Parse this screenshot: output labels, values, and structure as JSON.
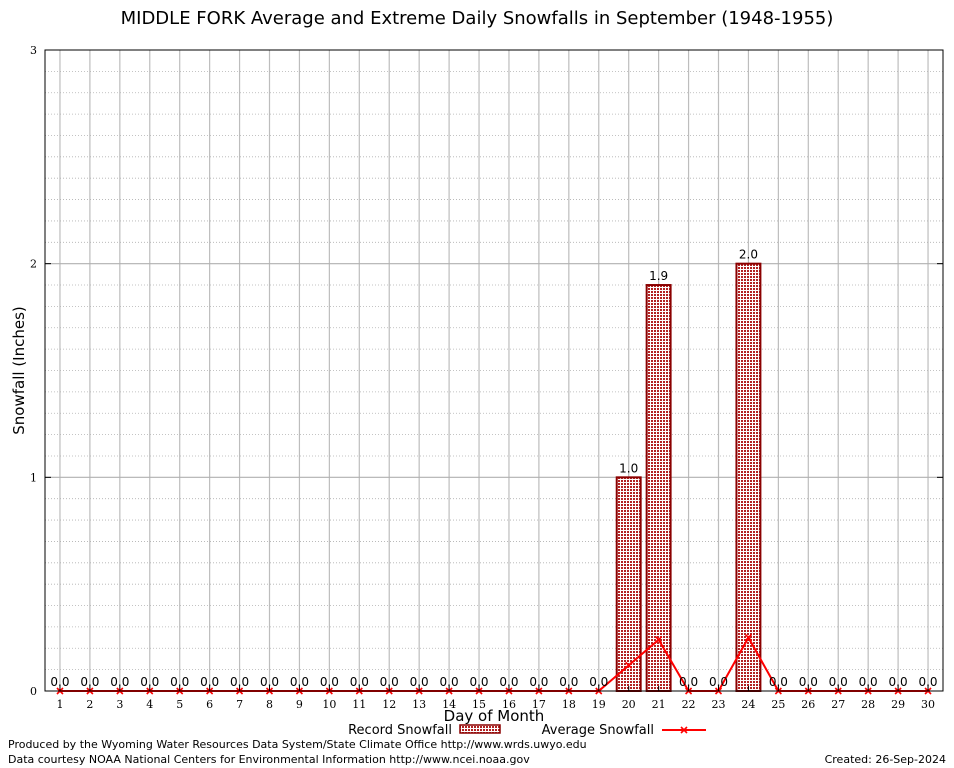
{
  "chart_data": {
    "type": "bar",
    "title": "MIDDLE FORK Average and Extreme Daily Snowfalls in September (1948-1955)",
    "xlabel": "Day of Month",
    "ylabel": "Snowfall (Inches)",
    "ylim": [
      0,
      3
    ],
    "yticks": [
      "0",
      "1",
      "2",
      "3"
    ],
    "grid": true,
    "categories": [
      "1",
      "2",
      "3",
      "4",
      "5",
      "6",
      "7",
      "8",
      "9",
      "10",
      "11",
      "12",
      "13",
      "14",
      "15",
      "16",
      "17",
      "18",
      "19",
      "20",
      "21",
      "22",
      "23",
      "24",
      "25",
      "26",
      "27",
      "28",
      "29",
      "30"
    ],
    "series": [
      {
        "name": "Record Snowfall",
        "kind": "bar",
        "color": "#b22222",
        "values": [
          0,
          0,
          0,
          0,
          0,
          0,
          0,
          0,
          0,
          0,
          0,
          0,
          0,
          0,
          0,
          0,
          0,
          0,
          0,
          1.0,
          1.9,
          0,
          0,
          2.0,
          0,
          0,
          0,
          0,
          0,
          0
        ],
        "labels": [
          "0.0",
          "0.0",
          "0.0",
          "0.0",
          "0.0",
          "0.0",
          "0.0",
          "0.0",
          "0.0",
          "0.0",
          "0.0",
          "0.0",
          "0.0",
          "0.0",
          "0.0",
          "0.0",
          "0.0",
          "0.0",
          "0.0",
          "1.0",
          "1.9",
          "0.0",
          "0.0",
          "2.0",
          "0.0",
          "0.0",
          "0.0",
          "0.0",
          "0.0",
          "0.0"
        ]
      },
      {
        "name": "Average Snowfall",
        "kind": "line",
        "color": "#ff0000",
        "values": [
          0,
          0,
          0,
          0,
          0,
          0,
          0,
          0,
          0,
          0,
          0,
          0,
          0,
          0,
          0,
          0,
          0,
          0,
          0,
          0.12,
          0.24,
          0,
          0,
          0.25,
          0,
          0,
          0,
          0,
          0,
          0
        ]
      }
    ],
    "legend_placement": "bottom-center"
  },
  "footer": {
    "line1": "Produced by the Wyoming Water Resources Data System/State Climate Office http://www.wrds.uwyo.edu",
    "line2": "Data courtesy NOAA National Centers for Environmental Information http://www.ncei.noaa.gov",
    "created": "Created:  26-Sep-2024"
  }
}
